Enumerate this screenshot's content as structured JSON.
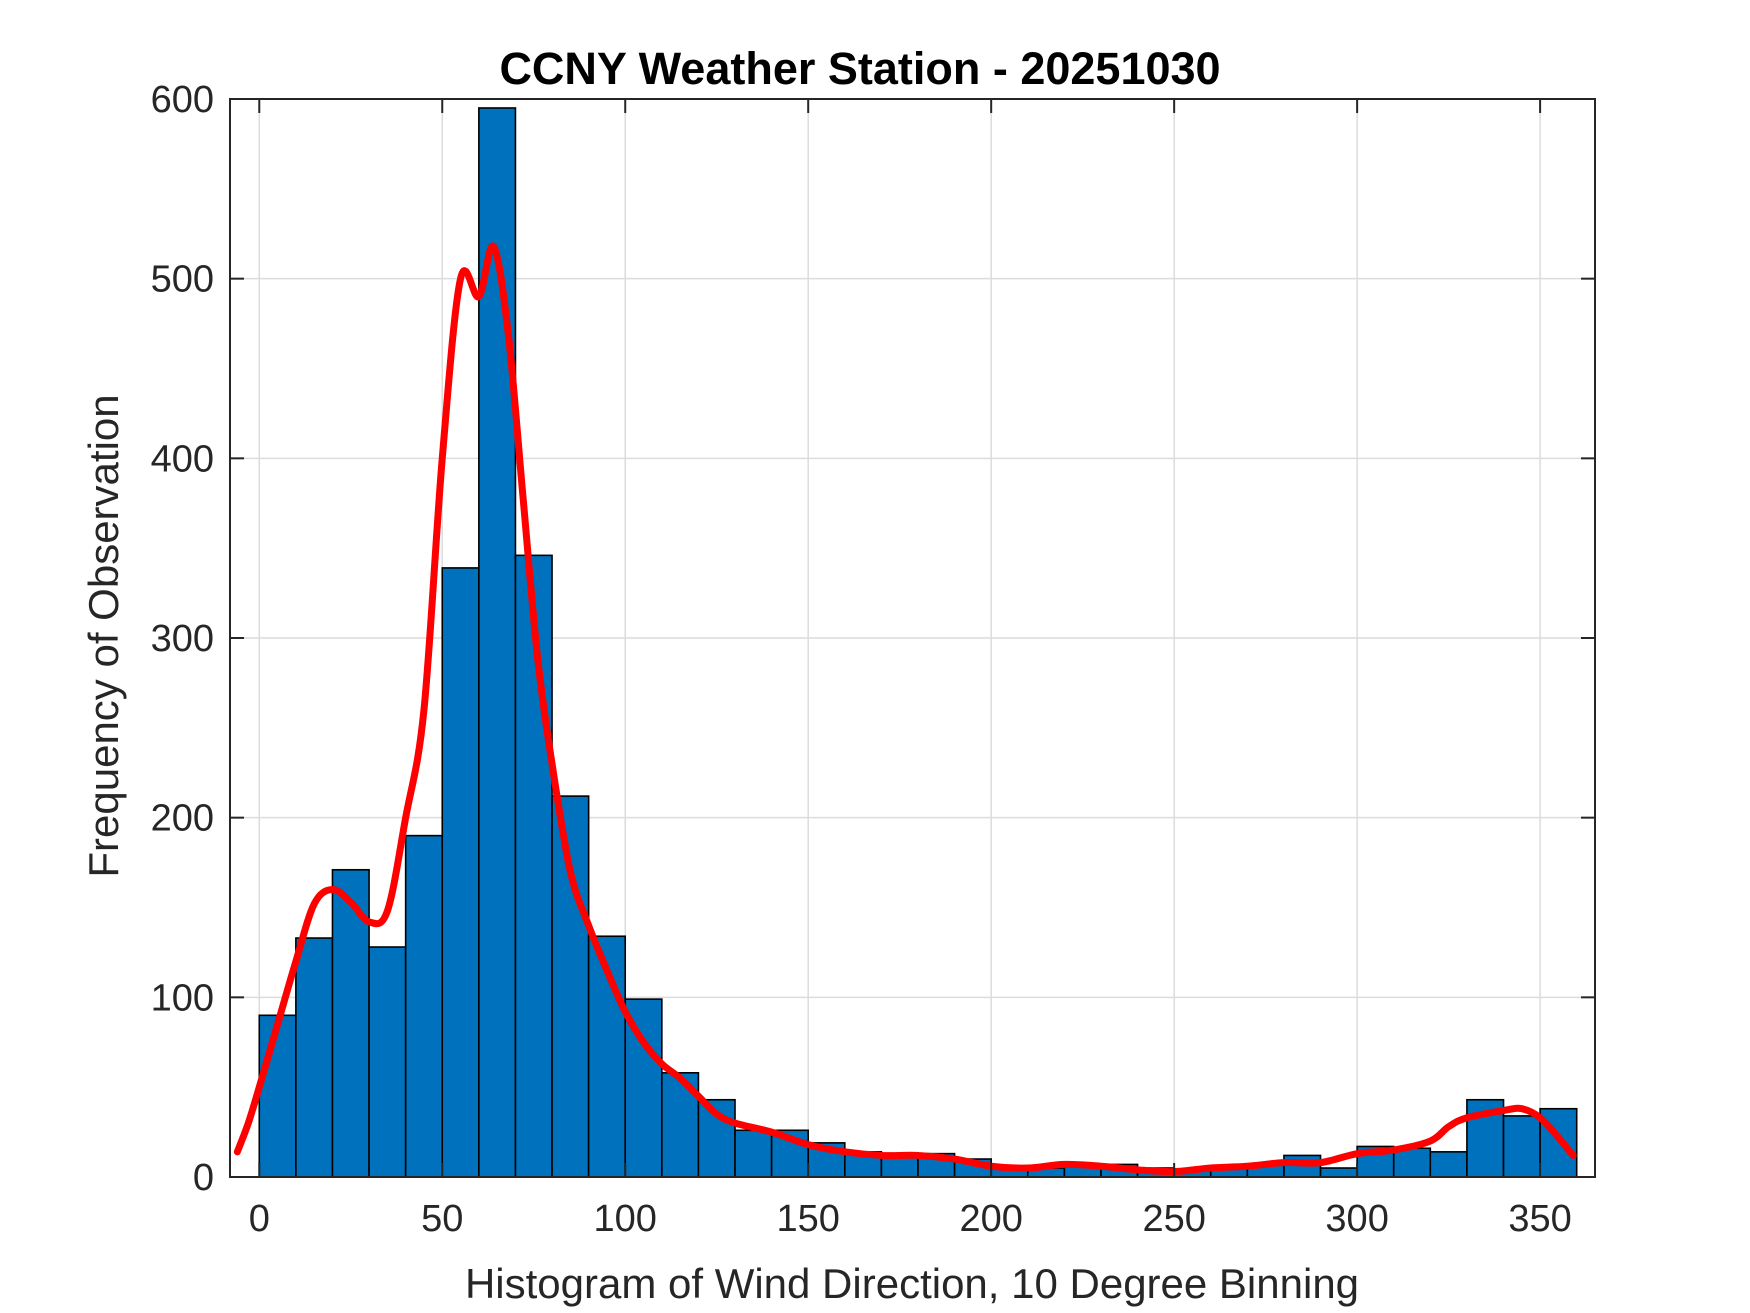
{
  "chart_data": {
    "type": "bar",
    "title": "CCNY Weather Station - 20251030",
    "xlabel": "Histogram of Wind Direction, 10 Degree Binning",
    "ylabel": "Frequency of Observation",
    "xlim": [
      -8,
      365
    ],
    "ylim": [
      0,
      600
    ],
    "xticks": [
      0,
      50,
      100,
      150,
      200,
      250,
      300,
      350
    ],
    "yticks": [
      0,
      100,
      200,
      300,
      400,
      500,
      600
    ],
    "grid": true,
    "bin_width": 10,
    "bins": {
      "x_start": [
        0,
        10,
        20,
        30,
        40,
        50,
        60,
        70,
        80,
        90,
        100,
        110,
        120,
        130,
        140,
        150,
        160,
        170,
        180,
        190,
        200,
        210,
        220,
        230,
        240,
        250,
        260,
        270,
        280,
        290,
        300,
        310,
        320,
        330,
        340,
        350
      ],
      "values": [
        90,
        133,
        171,
        128,
        190,
        339,
        595,
        346,
        212,
        134,
        99,
        58,
        43,
        26,
        26,
        19,
        14,
        12,
        13,
        10,
        5,
        5,
        7,
        7,
        5,
        4,
        5,
        7,
        12,
        5,
        17,
        16,
        14,
        43,
        34,
        38
      ]
    },
    "fit_line": {
      "x": [
        -6,
        -3,
        0,
        5,
        10,
        15,
        20,
        25,
        30,
        35,
        40,
        45,
        50,
        55,
        60,
        64,
        68,
        72,
        76,
        80,
        85,
        90,
        95,
        100,
        105,
        110,
        115,
        120,
        125,
        130,
        140,
        150,
        160,
        170,
        180,
        190,
        200,
        210,
        220,
        230,
        240,
        250,
        260,
        270,
        280,
        290,
        300,
        310,
        320,
        325,
        330,
        340,
        345,
        350,
        355,
        359
      ],
      "y": [
        14,
        30,
        50,
        85,
        120,
        152,
        160,
        153,
        142,
        148,
        200,
        260,
        400,
        500,
        490,
        518,
        470,
        380,
        290,
        230,
        170,
        140,
        115,
        92,
        75,
        63,
        55,
        45,
        35,
        30,
        25,
        18,
        14,
        12,
        12,
        10,
        6,
        5,
        7,
        6,
        4,
        3,
        5,
        6,
        8,
        8,
        13,
        15,
        20,
        28,
        33,
        37,
        38,
        33,
        22,
        12
      ]
    },
    "colors": {
      "bar_fill": "#0072BD",
      "bar_edge": "#000000",
      "fit_line": "#FF0000"
    }
  }
}
